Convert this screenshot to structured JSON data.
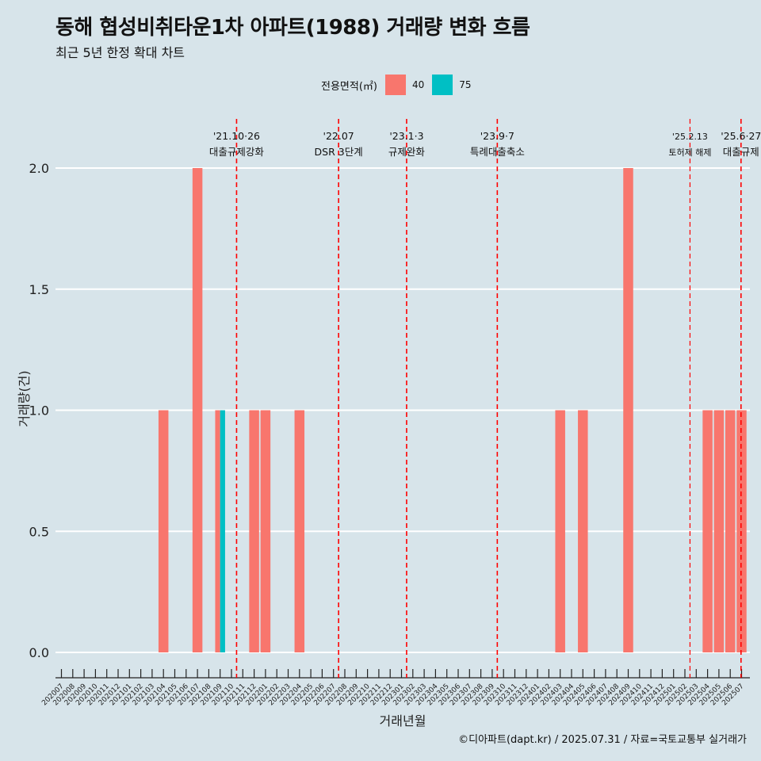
{
  "header": {
    "title": "동해 협성비취타운1차 아파트(1988) 거래량 변화 흐름",
    "subtitle": "최근 5년 한정 확대 차트"
  },
  "legend": {
    "title": "전용면적(㎡)",
    "items": [
      {
        "label": "40",
        "color": "#f8766d"
      },
      {
        "label": "75",
        "color": "#00bfc4"
      }
    ]
  },
  "caption": "©디아파트(dapt.kr) / 2025.07.31 / 자료=국토교통부 실거래가",
  "chart_data": {
    "type": "bar",
    "xlabel": "거래년월",
    "ylabel": "거래량(건)",
    "ylim": [
      0,
      2
    ],
    "yticks": [
      "0.0",
      "0.5",
      "1.0",
      "1.5",
      "2.0"
    ],
    "grid": "horizontal",
    "legend_position": "top",
    "categories": [
      "202007",
      "202008",
      "202009",
      "202010",
      "202011",
      "202012",
      "202101",
      "202102",
      "202103",
      "202104",
      "202105",
      "202106",
      "202107",
      "202108",
      "202109",
      "202110",
      "202111",
      "202112",
      "202201",
      "202202",
      "202203",
      "202204",
      "202205",
      "202206",
      "202207",
      "202208",
      "202209",
      "202210",
      "202211",
      "202212",
      "202301",
      "202302",
      "202303",
      "202304",
      "202305",
      "202306",
      "202307",
      "202308",
      "202309",
      "202310",
      "202311",
      "202312",
      "202401",
      "202402",
      "202403",
      "202404",
      "202405",
      "202406",
      "202407",
      "202408",
      "202409",
      "202410",
      "202411",
      "202412",
      "202501",
      "202502",
      "202503",
      "202504",
      "202505",
      "202506",
      "202507"
    ],
    "series": [
      {
        "name": "40",
        "color": "#f8766d",
        "points": [
          {
            "x": "202104",
            "y": 1
          },
          {
            "x": "202107",
            "y": 2
          },
          {
            "x": "202109",
            "y": 1
          },
          {
            "x": "202112",
            "y": 1
          },
          {
            "x": "202201",
            "y": 1
          },
          {
            "x": "202204",
            "y": 1
          },
          {
            "x": "202403",
            "y": 1
          },
          {
            "x": "202405",
            "y": 1
          },
          {
            "x": "202409",
            "y": 2
          },
          {
            "x": "202504",
            "y": 1
          },
          {
            "x": "202505",
            "y": 1
          },
          {
            "x": "202506",
            "y": 1
          },
          {
            "x": "202507",
            "y": 1
          }
        ]
      },
      {
        "name": "75",
        "color": "#00bfc4",
        "points": [
          {
            "x": "202109",
            "y": 1
          }
        ]
      }
    ],
    "annotations": [
      {
        "x": "202110",
        "date": "'21.10·26",
        "label": "대출규제강화"
      },
      {
        "x": "202207",
        "date": "'22.07",
        "label": "DSR 3단계"
      },
      {
        "x": "202301",
        "date": "'23.1·3",
        "label": "규제완화"
      },
      {
        "x": "202309",
        "date": "'23.9·7",
        "label": "특례대출축소"
      },
      {
        "x": "202502",
        "date": "'25.2.13",
        "label": "토허제 해제"
      },
      {
        "x": "202506",
        "date": "'25.6·27",
        "label": "대출규제"
      }
    ],
    "annotation_color": "#ff0000"
  }
}
